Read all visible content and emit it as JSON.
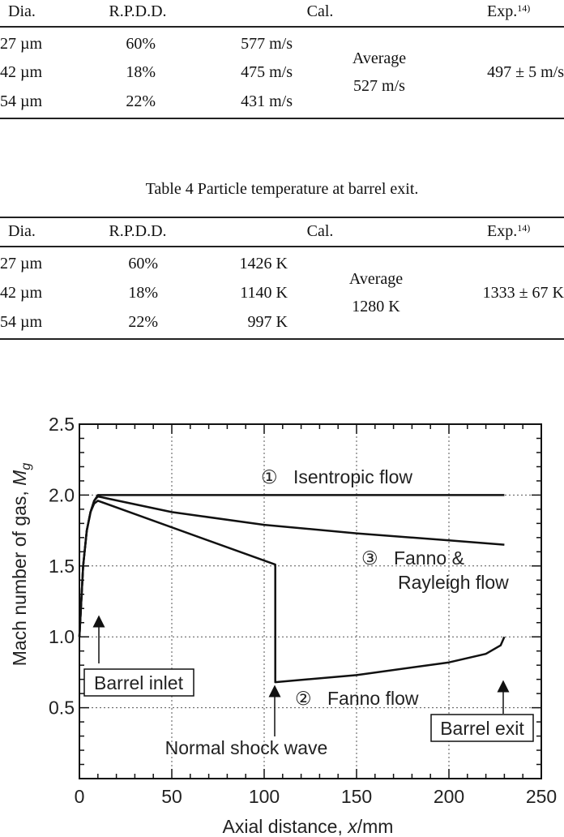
{
  "table3": {
    "header": {
      "dia": "Dia.",
      "rpdd": "R.P.D.D.",
      "cal": "Cal.",
      "exp": "Exp.",
      "exp_ref": "14)"
    },
    "rows": [
      {
        "dia": "27 µm",
        "rpdd": "60%",
        "cal": "577 m/s"
      },
      {
        "dia": "42 µm",
        "rpdd": "18%",
        "cal": "475 m/s"
      },
      {
        "dia": "54 µm",
        "rpdd": "22%",
        "cal": "431 m/s"
      }
    ],
    "average_label": "Average",
    "average_value": "527 m/s",
    "exp_value": "497 ± 5 m/s"
  },
  "table4": {
    "caption": "Table  4    Particle temperature at barrel exit.",
    "header": {
      "dia": "Dia.",
      "rpdd": "R.P.D.D.",
      "cal": "Cal.",
      "exp": "Exp.",
      "exp_ref": "14)"
    },
    "rows": [
      {
        "dia": "27 µm",
        "rpdd": "60%",
        "cal": "1426 K"
      },
      {
        "dia": "42 µm",
        "rpdd": "18%",
        "cal": "1140 K"
      },
      {
        "dia": "54 µm",
        "rpdd": "22%",
        "cal": "997 K"
      }
    ],
    "average_label": "Average",
    "average_value": "1280 K",
    "exp_value": "1333 ± 67 K"
  },
  "chart_data": {
    "type": "line",
    "xlabel_prefix": "Axial distance, ",
    "xlabel_var": "x",
    "xlabel_suffix": "/mm",
    "ylabel_prefix": "Mach number of gas, ",
    "ylabel_var": "M",
    "ylabel_sub": "g",
    "xlim": [
      0,
      250
    ],
    "ylim": [
      0,
      2.5
    ],
    "xticks": [
      "0",
      "50",
      "100",
      "150",
      "200",
      "250"
    ],
    "yticks": [
      "0.5",
      "1.0",
      "1.5",
      "2.0",
      "2.5"
    ],
    "grid": true,
    "series": [
      {
        "name": "Isentropic flow",
        "marker": "①",
        "x": [
          0,
          2,
          4,
          6,
          8,
          10,
          230
        ],
        "y": [
          1.0,
          1.5,
          1.75,
          1.88,
          1.96,
          2.0,
          2.0
        ]
      },
      {
        "name": "Fanno & Rayleigh flow",
        "marker": "③",
        "name_line2": "Rayleigh flow",
        "x": [
          0,
          2,
          4,
          6,
          8,
          10,
          50,
          100,
          150,
          200,
          230
        ],
        "y": [
          1.0,
          1.5,
          1.75,
          1.88,
          1.96,
          1.99,
          1.88,
          1.79,
          1.73,
          1.68,
          1.65
        ]
      },
      {
        "name": "Fanno flow",
        "marker": "②",
        "x": [
          0,
          2,
          4,
          6,
          8,
          10,
          106,
          106,
          150,
          200,
          220,
          228,
          230
        ],
        "y": [
          1.0,
          1.5,
          1.75,
          1.88,
          1.94,
          1.96,
          1.51,
          0.68,
          0.73,
          0.82,
          0.88,
          0.94,
          1.0
        ]
      }
    ],
    "annotations": {
      "label1_line1": "Isentropic flow",
      "label3_line1": "Fanno &",
      "label3_line2": "Rayleigh flow",
      "label2": "Fanno flow",
      "barrel_inlet": "Barrel inlet",
      "barrel_exit": "Barrel exit",
      "normal_shock": "Normal shock wave",
      "circle1": "①",
      "circle2": "②",
      "circle3": "③"
    }
  }
}
